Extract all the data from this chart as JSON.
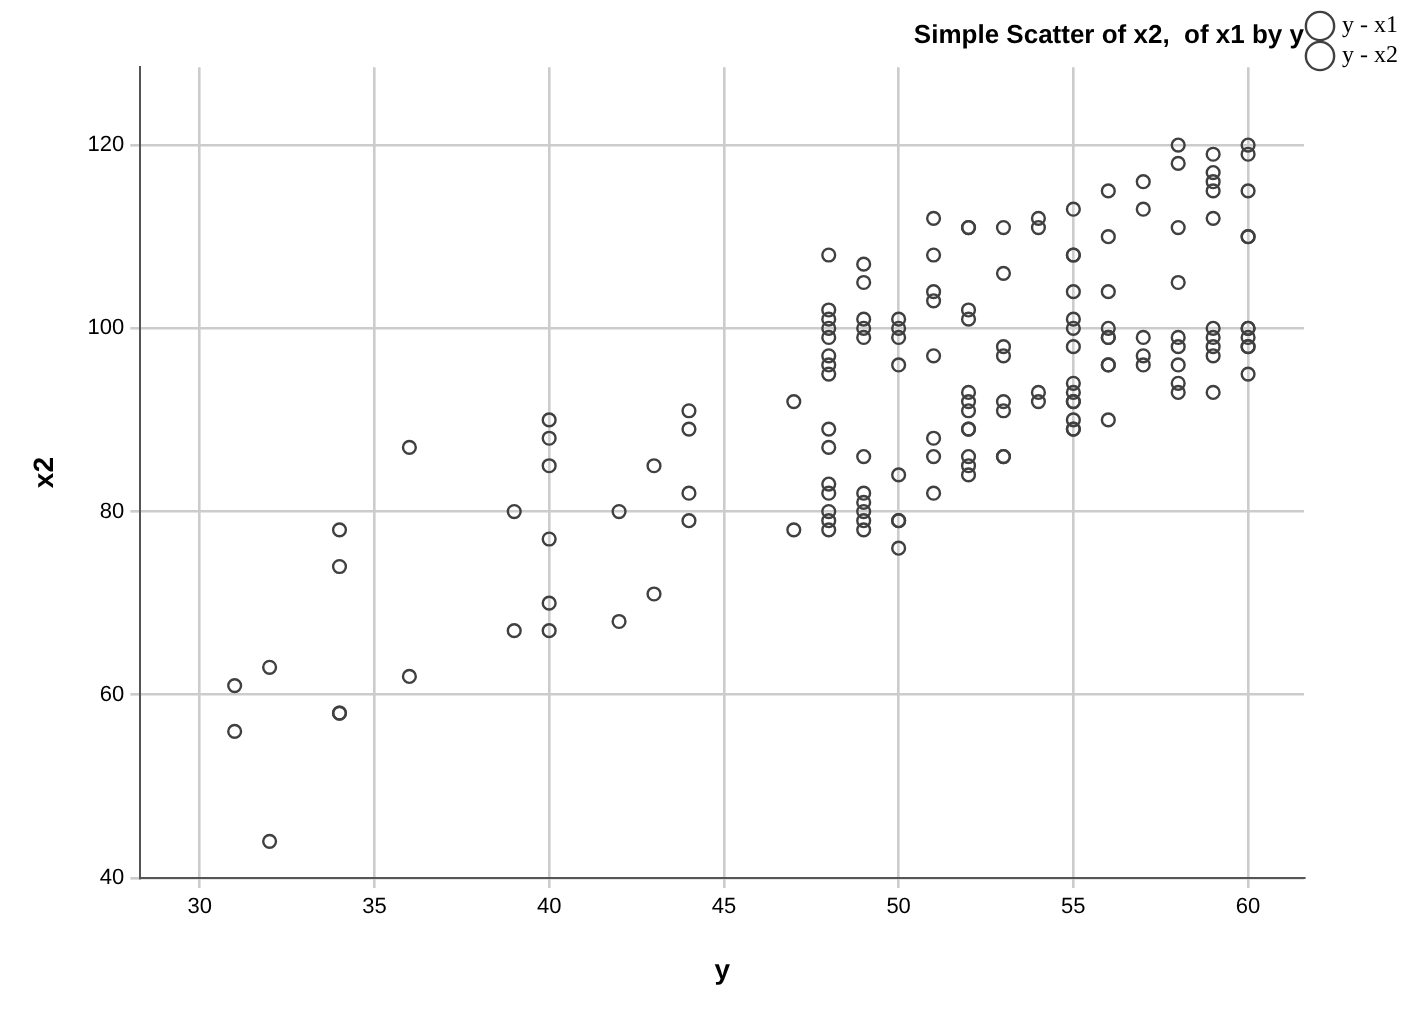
{
  "chart_data": {
    "type": "scatter",
    "title": "Simple Scatter of x2,  of x1 by y",
    "xlabel": "y",
    "ylabel": "x2",
    "xlim": [
      28.3,
      61.6
    ],
    "xticks": [
      30,
      35,
      40,
      45,
      50,
      55,
      60
    ],
    "ylim": [
      40,
      128.5
    ],
    "yticks": [
      40,
      60,
      80,
      100,
      120
    ],
    "grid": true,
    "legend": "top right",
    "marker": "circle",
    "series": [
      {
        "name": "y - x1",
        "color": "#404040",
        "x": [
          31,
          32,
          34,
          34,
          34,
          36,
          39,
          40,
          40,
          40,
          42,
          43,
          44,
          44,
          47,
          48,
          48,
          48,
          48,
          48,
          48,
          48,
          48,
          49,
          49,
          49,
          49,
          49,
          49,
          50,
          50,
          50,
          50,
          51,
          51,
          51,
          51,
          52,
          52,
          52,
          52,
          52,
          52,
          53,
          53,
          53,
          53,
          54,
          54,
          55,
          55,
          55,
          55,
          55,
          55,
          55,
          56,
          56,
          56,
          56,
          57,
          57,
          58,
          58,
          58,
          58,
          59,
          59,
          59,
          59,
          59,
          60,
          60,
          60,
          60,
          60
        ],
        "values": [
          56,
          44,
          74,
          58,
          58,
          62,
          67,
          77,
          70,
          67,
          68,
          71,
          82,
          79,
          78,
          95,
          89,
          87,
          83,
          82,
          80,
          79,
          78,
          86,
          82,
          81,
          80,
          79,
          78,
          84,
          79,
          79,
          76,
          97,
          88,
          86,
          82,
          91,
          89,
          89,
          86,
          85,
          84,
          92,
          91,
          86,
          86,
          93,
          92,
          94,
          93,
          92,
          92,
          90,
          89,
          89,
          99,
          96,
          96,
          90,
          97,
          96,
          98,
          96,
          94,
          93,
          100,
          99,
          98,
          97,
          93,
          100,
          99,
          98,
          98,
          95
        ]
      },
      {
        "name": "y - x2",
        "color": "#404040",
        "x": [
          31,
          32,
          34,
          36,
          39,
          40,
          40,
          40,
          42,
          43,
          44,
          44,
          47,
          48,
          48,
          48,
          48,
          48,
          48,
          48,
          49,
          49,
          49,
          49,
          49,
          50,
          50,
          50,
          50,
          51,
          51,
          51,
          51,
          52,
          52,
          52,
          52,
          52,
          52,
          53,
          53,
          53,
          53,
          54,
          54,
          55,
          55,
          55,
          55,
          55,
          55,
          55,
          56,
          56,
          56,
          56,
          56,
          57,
          57,
          57,
          58,
          58,
          58,
          58,
          58,
          59,
          59,
          59,
          59,
          59,
          60,
          60,
          60,
          60,
          60,
          60
        ],
        "values": [
          61,
          63,
          78,
          87,
          80,
          90,
          88,
          85,
          80,
          85,
          91,
          89,
          92,
          108,
          102,
          101,
          100,
          99,
          97,
          96,
          107,
          105,
          101,
          100,
          99,
          101,
          100,
          99,
          96,
          112,
          108,
          104,
          103,
          111,
          111,
          102,
          101,
          93,
          92,
          111,
          106,
          98,
          97,
          112,
          111,
          113,
          108,
          108,
          104,
          101,
          100,
          98,
          115,
          110,
          104,
          100,
          99,
          116,
          113,
          99,
          120,
          118,
          111,
          105,
          99,
          119,
          117,
          116,
          115,
          112,
          120,
          119,
          115,
          110,
          110,
          100
        ]
      }
    ]
  }
}
